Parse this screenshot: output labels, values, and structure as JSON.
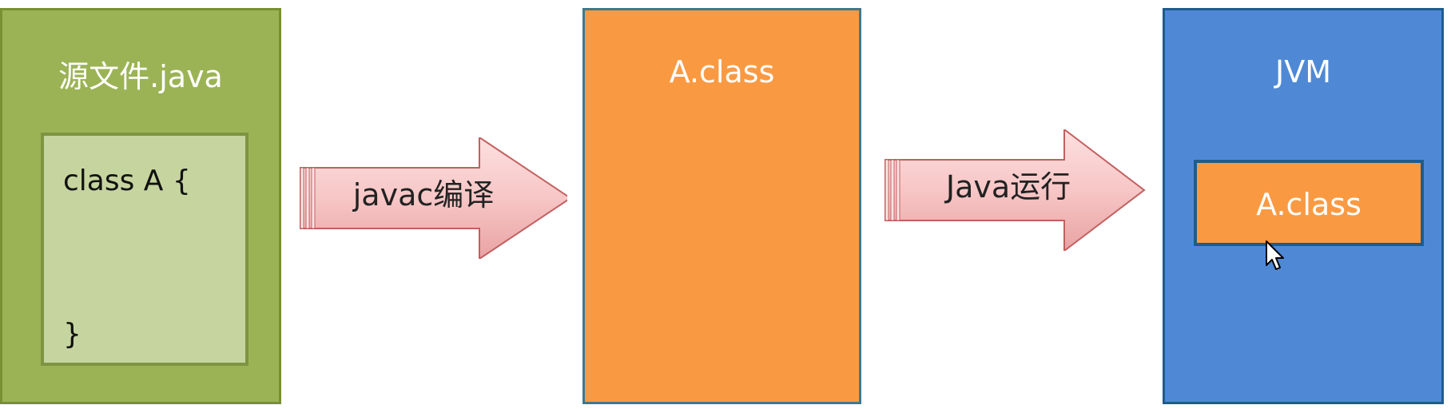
{
  "source": {
    "title": "源文件.java",
    "code_lines": [
      "class A {",
      "}"
    ]
  },
  "compile_arrow": {
    "label": "javac编译"
  },
  "class_file": {
    "title": "A.class"
  },
  "run_arrow": {
    "label": "Java运行"
  },
  "jvm": {
    "title": "JVM",
    "loaded_class": "A.class"
  },
  "colors": {
    "source_fill": "#9bb355",
    "code_fill": "#c6d59f",
    "class_fill": "#f99a43",
    "jvm_fill": "#4f89d6",
    "arrow_fill": "#f7c6c6"
  },
  "icons": {
    "cursor": "mouse-pointer-icon"
  }
}
